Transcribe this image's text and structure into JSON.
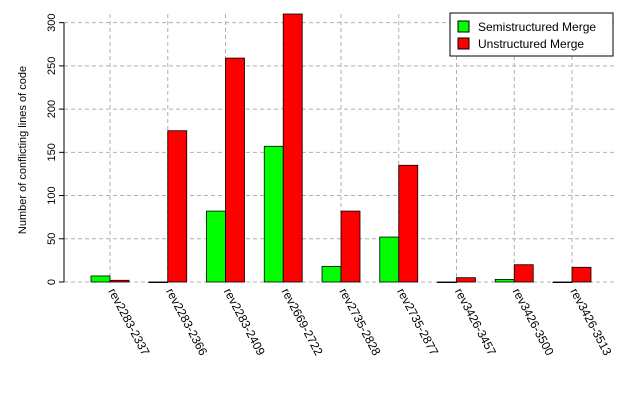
{
  "chart_data": {
    "type": "bar",
    "title": "",
    "xlabel": "",
    "ylabel": "Number of conflicting lines of code",
    "ylim": [
      0,
      310
    ],
    "yticks": [
      0,
      50,
      100,
      150,
      200,
      250,
      300
    ],
    "grid": true,
    "legend_position": "top-right",
    "categories": [
      "rev2283-2337",
      "rev2283-2366",
      "rev2283-2409",
      "rev2669-2722",
      "rev2735-2828",
      "rev2735-2877",
      "rev3426-3457",
      "rev3426-3500",
      "rev3426-3513"
    ],
    "series": [
      {
        "name": "Semistructured Merge",
        "color": "#00ff00",
        "values": [
          7,
          0,
          82,
          157,
          18,
          52,
          0,
          3,
          0
        ]
      },
      {
        "name": "Unstructured Merge",
        "color": "#ff0000",
        "values": [
          2,
          175,
          259,
          310,
          82,
          135,
          5,
          20,
          17
        ]
      }
    ]
  }
}
